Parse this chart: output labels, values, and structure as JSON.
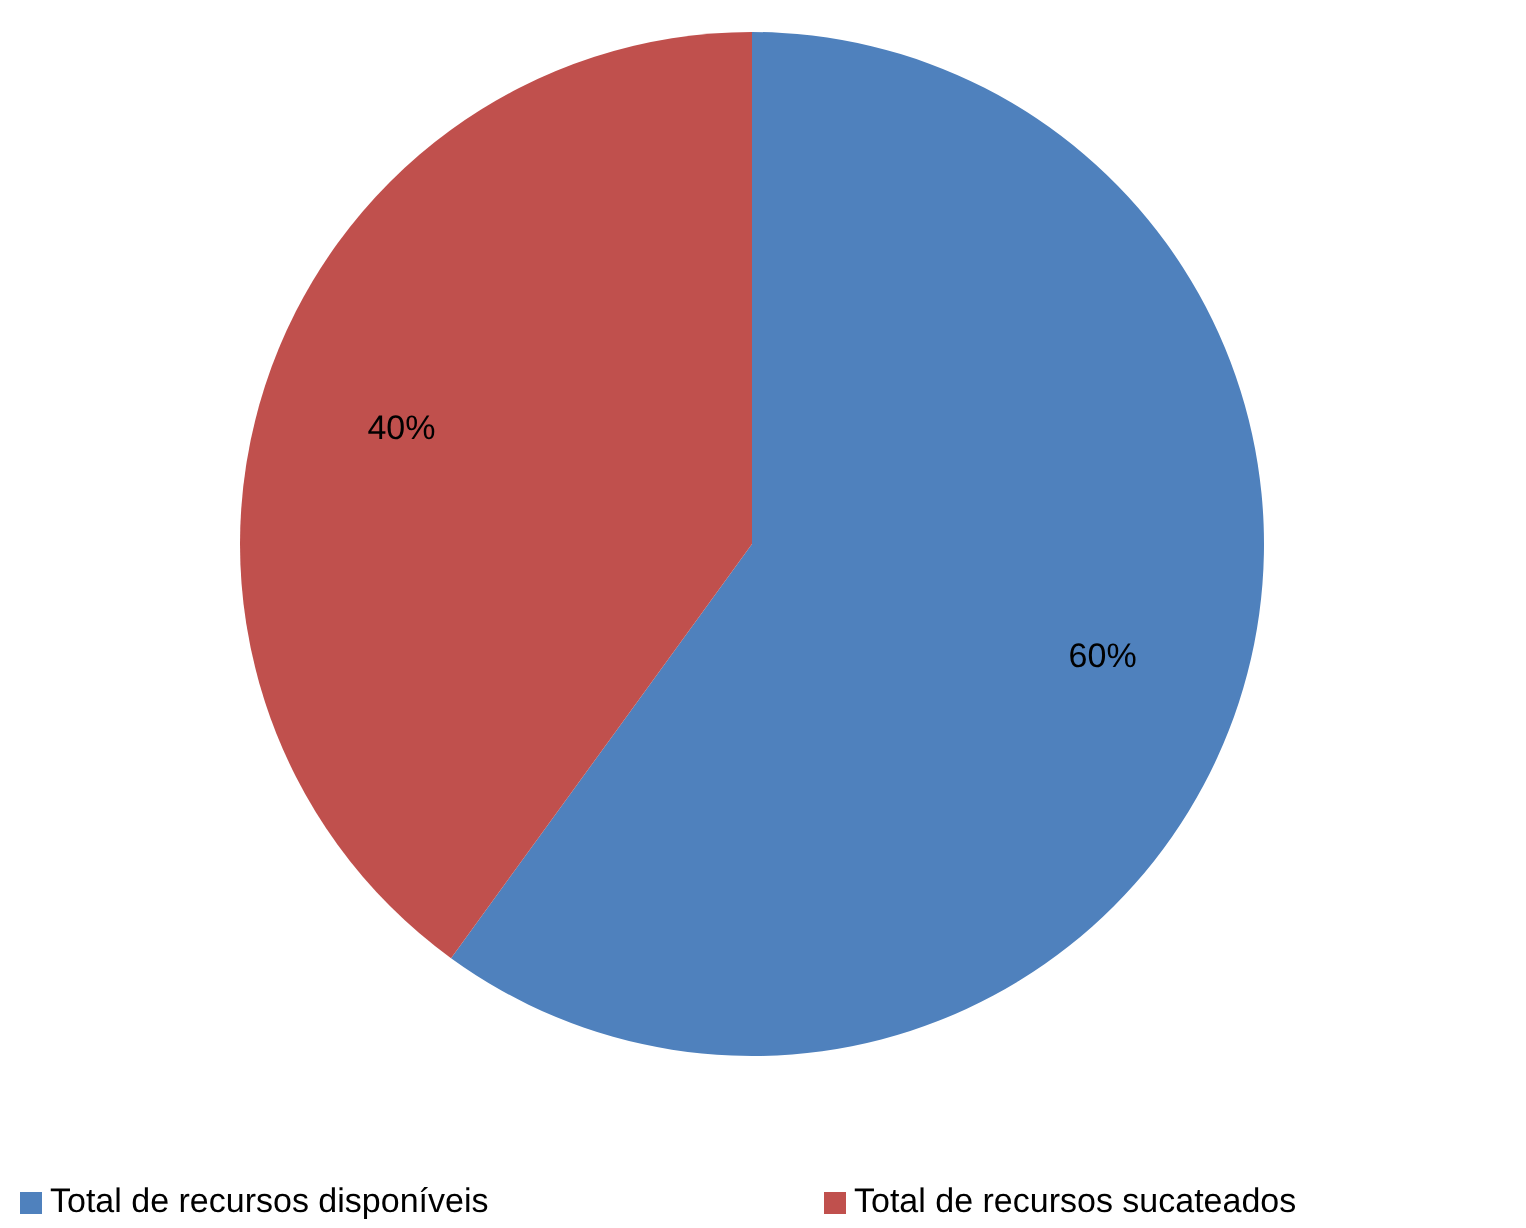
{
  "chart_data": {
    "type": "pie",
    "categories": [
      "Total de recursos disponíveis",
      "Total de recursos sucateados"
    ],
    "values": [
      60,
      40
    ],
    "colors": [
      "#4f81bd",
      "#c0504d"
    ],
    "value_labels": [
      "60%",
      "40%"
    ],
    "legend": "bottom"
  }
}
